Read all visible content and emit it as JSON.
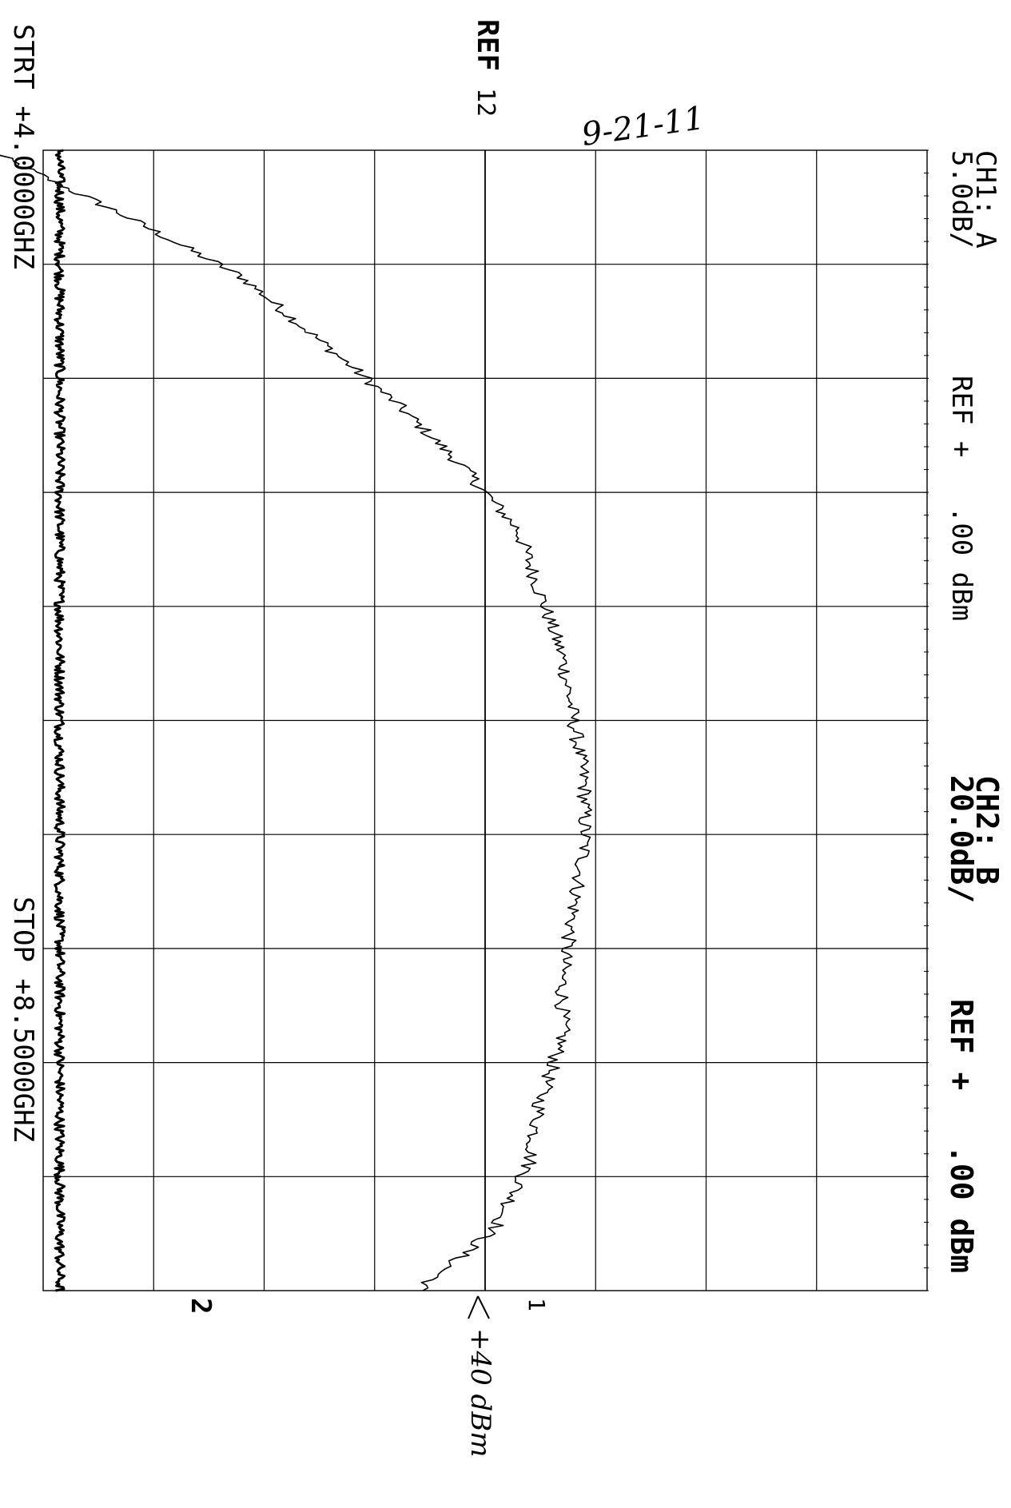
{
  "header": {
    "ch1_label": "CH1: A",
    "ch1_scale": "5.0dB/",
    "ch1_ref": "REF +   .00 dBm",
    "ch2_label": "CH2: B",
    "ch2_scale": "20.0dB/",
    "ch2_ref": "REF +   .00 dBm",
    "ref_marker": "REF",
    "ref_marker_sub": "12"
  },
  "footer": {
    "start": "STRT +4.0000GHZ",
    "stop": "STOP +8.5000GHZ"
  },
  "annotations": {
    "date": "9-21-11",
    "ref_note": "+40 dBm",
    "trace1_marker": "1",
    "trace2_marker": "2"
  },
  "chart_data": {
    "type": "line",
    "x_start_ghz": 4.0,
    "x_stop_ghz": 8.5,
    "x_divisions": 10,
    "y_divisions": 8,
    "grid": true,
    "reference_line_division": 4,
    "series": [
      {
        "name": "1",
        "channel": "CH1: A",
        "x": [
          4.0,
          4.25,
          4.5,
          4.75,
          5.0,
          5.25,
          5.5,
          5.75,
          6.0,
          6.25,
          6.5,
          6.75,
          7.0,
          7.25,
          7.5,
          7.75,
          8.0,
          8.25,
          8.5
        ],
        "y": [
          -22.5,
          -16.5,
          -11.0,
          -7.5,
          -4.0,
          -1.0,
          1.5,
          2.5,
          3.5,
          4.0,
          4.5,
          4.5,
          4.0,
          3.5,
          3.5,
          2.5,
          2.0,
          0.5,
          -3.0
        ]
      },
      {
        "name": "2",
        "channel": "CH2: B",
        "x": [
          4.0,
          8.5
        ],
        "y": [
          -77,
          -77
        ]
      }
    ]
  }
}
